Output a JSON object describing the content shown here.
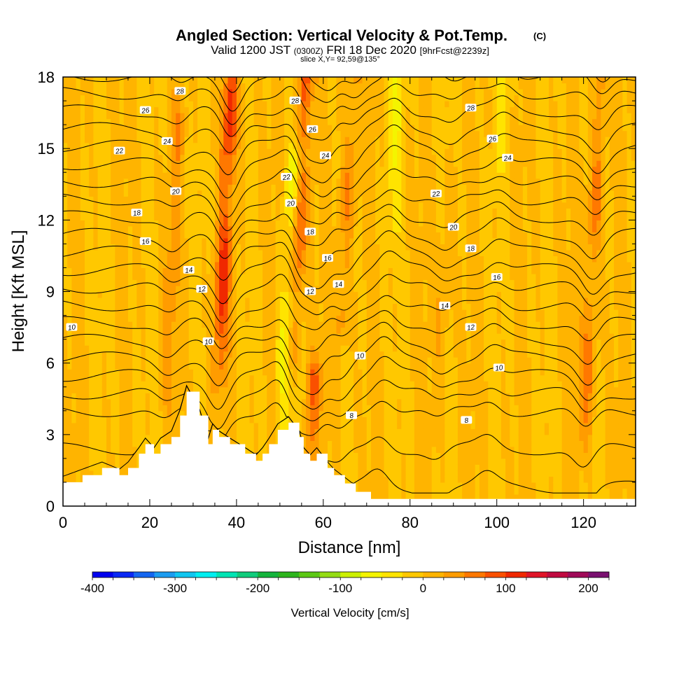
{
  "chart_data": {
    "type": "heatmap",
    "title": "Angled Section: Vertical Velocity & Pot.Temp.",
    "title_unit": "(C)",
    "subtitle": {
      "valid_prefix": "Valid 1200 JST",
      "utc": "(0300Z)",
      "date": "FRI 18 Dec 2020",
      "forecast": "[9hrFcst@2239z]"
    },
    "slice_label": "slice X,Y= 92,59@135°",
    "xlabel": "Distance [nm]",
    "ylabel": "Height [Kft MSL]",
    "xlim": [
      0,
      132
    ],
    "ylim": [
      0,
      18
    ],
    "xticks": [
      0,
      20,
      40,
      60,
      80,
      100,
      120
    ],
    "yticks": [
      0,
      3,
      6,
      9,
      12,
      15,
      18
    ],
    "grid": false,
    "field": {
      "name": "Vertical Velocity [cm/s]",
      "background_range": [
        -20,
        20
      ],
      "updraft_columns_nm": [
        {
          "x": 37,
          "peak": 110,
          "from_kft": 6,
          "to_kft": 18
        },
        {
          "x": 54,
          "peak": 100,
          "from_kft": 7,
          "to_kft": 18
        },
        {
          "x": 59,
          "peak": 90,
          "from_kft": 2.5,
          "to_kft": 5
        },
        {
          "x": 65,
          "peak": 60,
          "from_kft": 8,
          "to_kft": 18
        },
        {
          "x": 122,
          "peak": 70,
          "from_kft": 3,
          "to_kft": 18
        },
        {
          "x": 25,
          "peak": 40,
          "from_kft": 5,
          "to_kft": 16
        },
        {
          "x": 88,
          "peak": 35,
          "from_kft": 4,
          "to_kft": 13
        }
      ],
      "downdraft_columns_nm": [
        {
          "x": 52,
          "peak": -70,
          "from_kft": 2,
          "to_kft": 14
        },
        {
          "x": 75,
          "peak": -50,
          "from_kft": 12,
          "to_kft": 18
        },
        {
          "x": 100,
          "peak": -35,
          "from_kft": 15,
          "to_kft": 18
        }
      ]
    },
    "contours": {
      "variable": "Potential Temperature (C)",
      "interval": 1,
      "labels": [
        {
          "value": "28",
          "x": 27,
          "y": 17.4
        },
        {
          "value": "26",
          "x": 19,
          "y": 16.6
        },
        {
          "value": "24",
          "x": 24,
          "y": 15.3
        },
        {
          "value": "22",
          "x": 13,
          "y": 14.9
        },
        {
          "value": "20",
          "x": 26,
          "y": 13.2
        },
        {
          "value": "18",
          "x": 17,
          "y": 12.3
        },
        {
          "value": "16",
          "x": 19,
          "y": 11.1
        },
        {
          "value": "14",
          "x": 29,
          "y": 9.9
        },
        {
          "value": "12",
          "x": 32,
          "y": 9.1
        },
        {
          "value": "10",
          "x": 2,
          "y": 7.5
        },
        {
          "value": "10",
          "x": 33.5,
          "y": 6.9
        },
        {
          "value": "28",
          "x": 53.5,
          "y": 17.0
        },
        {
          "value": "26",
          "x": 57.5,
          "y": 15.8
        },
        {
          "value": "24",
          "x": 60.5,
          "y": 14.7
        },
        {
          "value": "22",
          "x": 51.5,
          "y": 13.8
        },
        {
          "value": "20",
          "x": 52.5,
          "y": 12.7
        },
        {
          "value": "18",
          "x": 57,
          "y": 11.5
        },
        {
          "value": "16",
          "x": 61,
          "y": 10.4
        },
        {
          "value": "14",
          "x": 63.5,
          "y": 9.3
        },
        {
          "value": "12",
          "x": 57,
          "y": 9.0
        },
        {
          "value": "10",
          "x": 68.5,
          "y": 6.3
        },
        {
          "value": "8",
          "x": 66.5,
          "y": 3.8
        },
        {
          "value": "28",
          "x": 94,
          "y": 16.7
        },
        {
          "value": "26",
          "x": 99,
          "y": 15.4
        },
        {
          "value": "24",
          "x": 102.5,
          "y": 14.6
        },
        {
          "value": "22",
          "x": 86,
          "y": 13.1
        },
        {
          "value": "20",
          "x": 90,
          "y": 11.7
        },
        {
          "value": "18",
          "x": 94,
          "y": 10.8
        },
        {
          "value": "16",
          "x": 100,
          "y": 9.6
        },
        {
          "value": "14",
          "x": 88,
          "y": 8.4
        },
        {
          "value": "12",
          "x": 94,
          "y": 7.5
        },
        {
          "value": "10",
          "x": 100.5,
          "y": 5.8
        },
        {
          "value": "8",
          "x": 93,
          "y": 3.6
        }
      ]
    },
    "terrain_profile": [
      {
        "x": 0,
        "h": 1.0
      },
      {
        "x": 4.5,
        "h": 1.3
      },
      {
        "x": 9,
        "h": 1.6
      },
      {
        "x": 13,
        "h": 1.3
      },
      {
        "x": 15,
        "h": 1.6
      },
      {
        "x": 17.5,
        "h": 2.2
      },
      {
        "x": 19,
        "h": 2.6
      },
      {
        "x": 21,
        "h": 2.2
      },
      {
        "x": 22.5,
        "h": 2.6
      },
      {
        "x": 25,
        "h": 2.9
      },
      {
        "x": 27,
        "h": 3.8
      },
      {
        "x": 28.5,
        "h": 4.8
      },
      {
        "x": 31.5,
        "h": 3.8
      },
      {
        "x": 33.5,
        "h": 2.6
      },
      {
        "x": 34.5,
        "h": 3.2
      },
      {
        "x": 36,
        "h": 2.9
      },
      {
        "x": 38.5,
        "h": 2.6
      },
      {
        "x": 42,
        "h": 2.2
      },
      {
        "x": 44.5,
        "h": 1.9
      },
      {
        "x": 46,
        "h": 2.2
      },
      {
        "x": 47.5,
        "h": 2.6
      },
      {
        "x": 49.5,
        "h": 3.2
      },
      {
        "x": 52,
        "h": 3.5
      },
      {
        "x": 54.5,
        "h": 2.9
      },
      {
        "x": 55.5,
        "h": 2.2
      },
      {
        "x": 57,
        "h": 1.9
      },
      {
        "x": 58.5,
        "h": 2.2
      },
      {
        "x": 61,
        "h": 1.6
      },
      {
        "x": 62.5,
        "h": 1.3
      },
      {
        "x": 65,
        "h": 0.95
      },
      {
        "x": 67.5,
        "h": 0.6
      },
      {
        "x": 71,
        "h": 0.3
      },
      {
        "x": 132,
        "h": 0.3
      }
    ],
    "colorbar": {
      "label": "Vertical Velocity [cm/s]",
      "min": -400,
      "max": 225,
      "step": 25,
      "ticks": [
        -400,
        -300,
        -200,
        -100,
        0,
        100,
        200
      ],
      "colors": [
        "#0000ee",
        "#0a28f4",
        "#1466f0",
        "#1c9cf0",
        "#10c6f0",
        "#00eef0",
        "#00e4b4",
        "#10cc7c",
        "#14b43c",
        "#2cb41c",
        "#5cc814",
        "#94dc14",
        "#ccf000",
        "#f4f400",
        "#ffe400",
        "#ffc800",
        "#ffb400",
        "#ff9c00",
        "#ff7800",
        "#fa5000",
        "#f02800",
        "#e01428",
        "#c00a40",
        "#a00a58",
        "#7a1070"
      ]
    }
  }
}
